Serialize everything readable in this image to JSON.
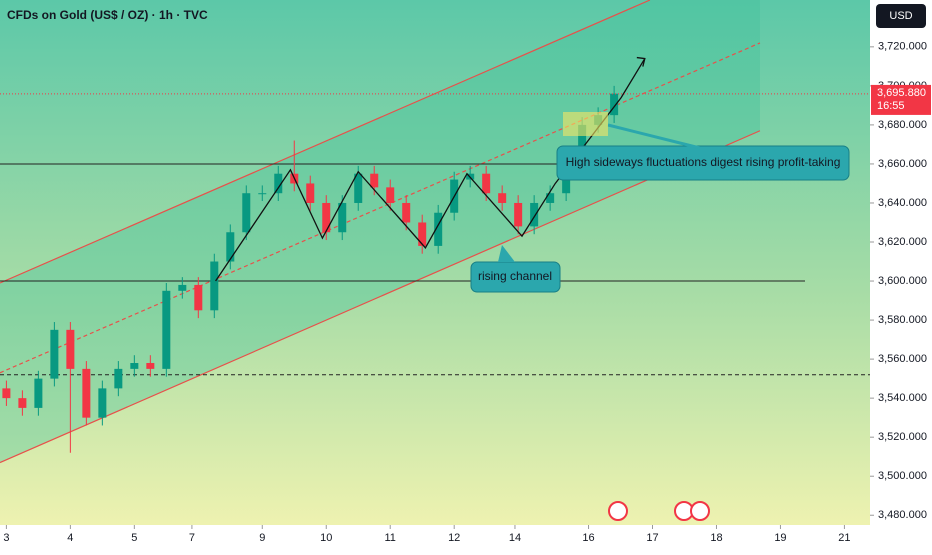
{
  "chart_data": {
    "type": "candlestick",
    "title": "CFDs on Gold (US$ / OZ) · 1h · TVC",
    "currency": "USD",
    "x": [
      0,
      0.25,
      0.5,
      0.75,
      1,
      1.25,
      1.5,
      1.75,
      2,
      2.25,
      2.5,
      2.75,
      3,
      3.25,
      3.5,
      3.75,
      4,
      4.25,
      4.5,
      4.75,
      5,
      5.25,
      5.5,
      5.75,
      6,
      6.25,
      6.5,
      6.75,
      7,
      7.25,
      7.5,
      7.75,
      8,
      8.25,
      8.5,
      8.75,
      9,
      9.25,
      9.5
    ],
    "open": [
      3545,
      3540,
      3535,
      3550,
      3575,
      3555,
      3530,
      3545,
      3555,
      3558,
      3555,
      3595,
      3598,
      3585,
      3610,
      3625,
      3645,
      3645,
      3655,
      3650,
      3640,
      3625,
      3640,
      3655,
      3648,
      3640,
      3630,
      3618,
      3635,
      3652,
      3655,
      3645,
      3640,
      3628,
      3640,
      3645,
      3665,
      3680,
      3685
    ],
    "high": [
      3549,
      3544,
      3554,
      3579,
      3579,
      3559,
      3549,
      3559,
      3562,
      3562,
      3599,
      3602,
      3602,
      3614,
      3629,
      3649,
      3649,
      3659,
      3672,
      3654,
      3644,
      3644,
      3659,
      3659,
      3652,
      3644,
      3634,
      3639,
      3656,
      3659,
      3659,
      3649,
      3644,
      3644,
      3649,
      3669,
      3684,
      3689,
      3700
    ],
    "low": [
      3536,
      3531,
      3531,
      3546,
      3512,
      3526,
      3526,
      3541,
      3551,
      3551,
      3551,
      3591,
      3581,
      3581,
      3606,
      3621,
      3641,
      3641,
      3646,
      3636,
      3621,
      3621,
      3636,
      3644,
      3636,
      3626,
      3614,
      3614,
      3631,
      3648,
      3641,
      3636,
      3624,
      3624,
      3636,
      3641,
      3661,
      3676,
      3681
    ],
    "close": [
      3540,
      3535,
      3550,
      3575,
      3555,
      3530,
      3545,
      3555,
      3558,
      3555,
      3595,
      3598,
      3585,
      3610,
      3625,
      3645,
      3645,
      3655,
      3650,
      3640,
      3625,
      3640,
      3655,
      3648,
      3640,
      3630,
      3618,
      3635,
      3652,
      3655,
      3645,
      3640,
      3628,
      3640,
      3645,
      3665,
      3680,
      3685,
      3696
    ],
    "up_color": "#089981",
    "down_color": "#f23645",
    "xlim": [
      -0.1,
      13.5
    ],
    "xticks": [
      {
        "value": 0,
        "label": "3"
      },
      {
        "value": 1,
        "label": "4"
      },
      {
        "value": 2,
        "label": "5"
      },
      {
        "value": 2.9,
        "label": "7"
      },
      {
        "value": 4,
        "label": "9"
      },
      {
        "value": 5,
        "label": "10"
      },
      {
        "value": 6,
        "label": "11"
      },
      {
        "value": 7,
        "label": "12"
      },
      {
        "value": 7.95,
        "label": "14"
      },
      {
        "value": 9.1,
        "label": "16"
      },
      {
        "value": 10.1,
        "label": "17"
      },
      {
        "value": 11.1,
        "label": "18"
      },
      {
        "value": 12.1,
        "label": "19"
      },
      {
        "value": 13.1,
        "label": "21"
      }
    ],
    "ylim": [
      3475,
      3744
    ],
    "yticks": [
      {
        "value": 3480,
        "label": "3,480.000"
      },
      {
        "value": 3500,
        "label": "3,500.000"
      },
      {
        "value": 3520,
        "label": "3,520.000"
      },
      {
        "value": 3540,
        "label": "3,540.000"
      },
      {
        "value": 3560,
        "label": "3,560.000"
      },
      {
        "value": 3580,
        "label": "3,580.000"
      },
      {
        "value": 3600,
        "label": "3,600.000"
      },
      {
        "value": 3620,
        "label": "3,620.000"
      },
      {
        "value": 3640,
        "label": "3,640.000"
      },
      {
        "value": 3660,
        "label": "3,660.000"
      },
      {
        "value": 3680,
        "label": "3,680.000"
      },
      {
        "value": 3700,
        "label": "3,700.000"
      },
      {
        "value": 3720,
        "label": "3,720.000"
      }
    ],
    "last_price": {
      "value": 3695.88,
      "value_label": "3,695.880",
      "countdown": "16:55"
    },
    "hlines": [
      3660,
      3600,
      3552
    ],
    "channel": {
      "upper": {
        "x": [
          -0.1,
          10.06
        ],
        "y": [
          3599,
          3744
        ]
      },
      "middle": {
        "x": [
          -0.1,
          11.78
        ],
        "y": [
          3553,
          3722
        ]
      },
      "lower": {
        "x": [
          -0.1,
          11.78
        ],
        "y": [
          3507,
          3677
        ]
      }
    },
    "pattern": {
      "x": [
        3.27,
        4.44,
        4.94,
        5.5,
        6.55,
        7.2,
        8.06,
        8.58,
        9.61,
        9.98
      ],
      "y": [
        3600,
        3657,
        3622,
        3656,
        3617,
        3655,
        3623,
        3650,
        3694,
        3714
      ]
    },
    "annotations": [
      "High sideways fluctuations digest rising profit-taking",
      "rising channel"
    ]
  }
}
